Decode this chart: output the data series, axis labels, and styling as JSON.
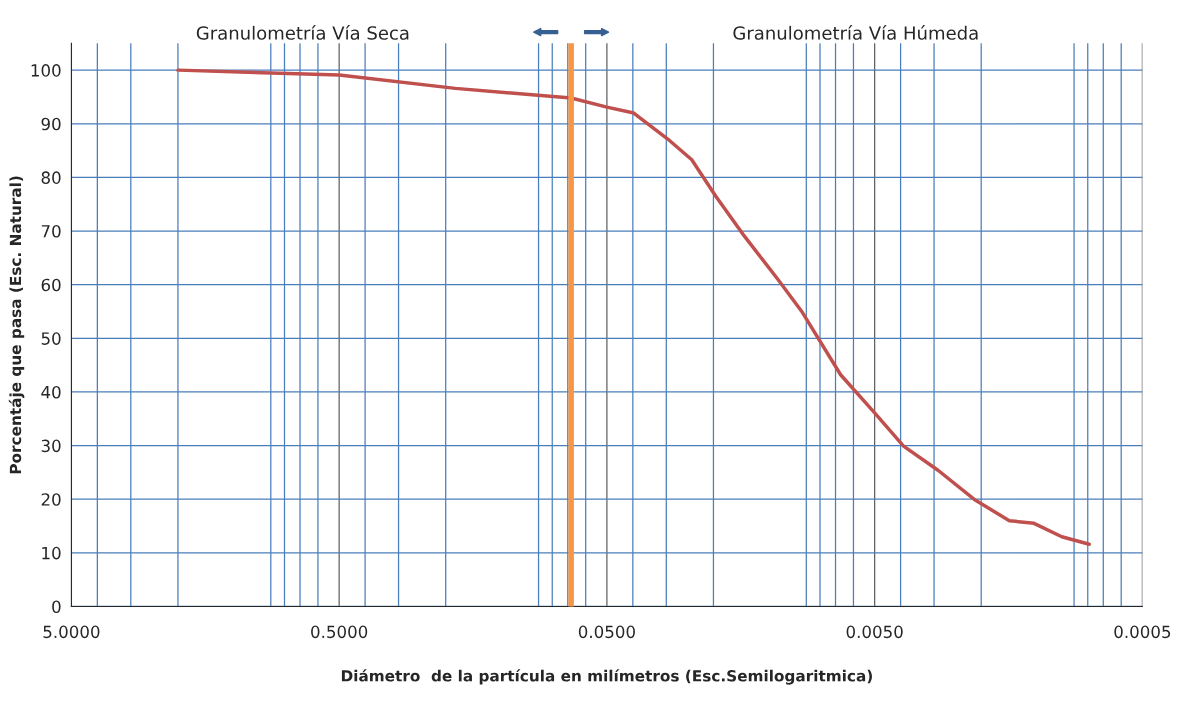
{
  "chart_data": {
    "type": "line",
    "xlabel": "Diámetro  de la partícula en milímetros (Esc.Semilogaritmica)",
    "ylabel": "Porcentáje que pasa (Esc. Natural)",
    "x": [
      2.0,
      0.5,
      0.184,
      0.068,
      0.05,
      0.0397,
      0.0297,
      0.0241,
      0.0196,
      0.0153,
      0.0115,
      0.0093,
      0.0067,
      0.005,
      0.0039,
      0.0029,
      0.0021,
      0.00157,
      0.00127,
      0.001,
      0.00079
    ],
    "series": [
      {
        "color": "#c0504d",
        "values": [
          100,
          99.1,
          96.6,
          94.8,
          93.1,
          92,
          87.2,
          83.3,
          76.5,
          69,
          61,
          54.8,
          43.2,
          36.1,
          29.9,
          25.4,
          19.8,
          16,
          15.5,
          13,
          11.6
        ]
      }
    ],
    "log": "x",
    "xlim": [
      5,
      0.0005
    ],
    "xticks": [
      {
        "value": 5,
        "label": "5.0000"
      },
      {
        "value": 0.5,
        "label": "0.5000"
      },
      {
        "value": 0.05,
        "label": "0.0500"
      },
      {
        "value": 0.005,
        "label": "0.0050"
      },
      {
        "value": 0.0005,
        "label": "0.0005"
      }
    ],
    "ylim": [
      0,
      105
    ],
    "yticks": [
      0,
      10,
      20,
      30,
      40,
      50,
      60,
      70,
      80,
      90,
      100
    ],
    "grid": true,
    "marker": "none",
    "line_style": "solid",
    "ref_lines": [
      {
        "axis": "x",
        "value": 0.068,
        "color": "#f79646"
      }
    ],
    "annotations": [
      "Granulometría Vía Seca",
      "Granulometría Vía Húmeda"
    ]
  }
}
